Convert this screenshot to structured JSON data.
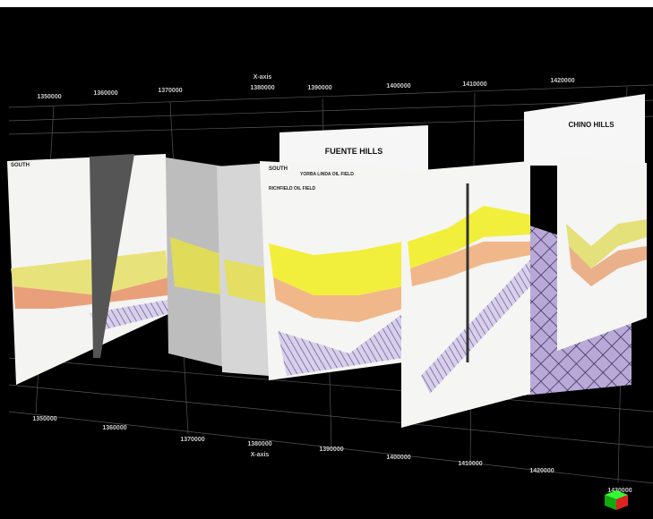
{
  "top_axis": {
    "label": "X-axis",
    "ticks": [
      1350000,
      1360000,
      1370000,
      1380000,
      1390000,
      1400000,
      1410000,
      1420000
    ]
  },
  "bottom_axis": {
    "label": "X-axis",
    "ticks": [
      1350000,
      1360000,
      1370000,
      1380000,
      1390000,
      1400000,
      1410000,
      1420000,
      1430000
    ]
  },
  "panels": [
    {
      "title": "SOUTH"
    },
    {
      "title": "RICHFIELD OIL FIELD"
    },
    {
      "title": "YORBA LINDA OIL FIELD"
    },
    {
      "title": "FUENTE HILLS"
    },
    {
      "title": "CHINO HILLS"
    }
  ]
}
